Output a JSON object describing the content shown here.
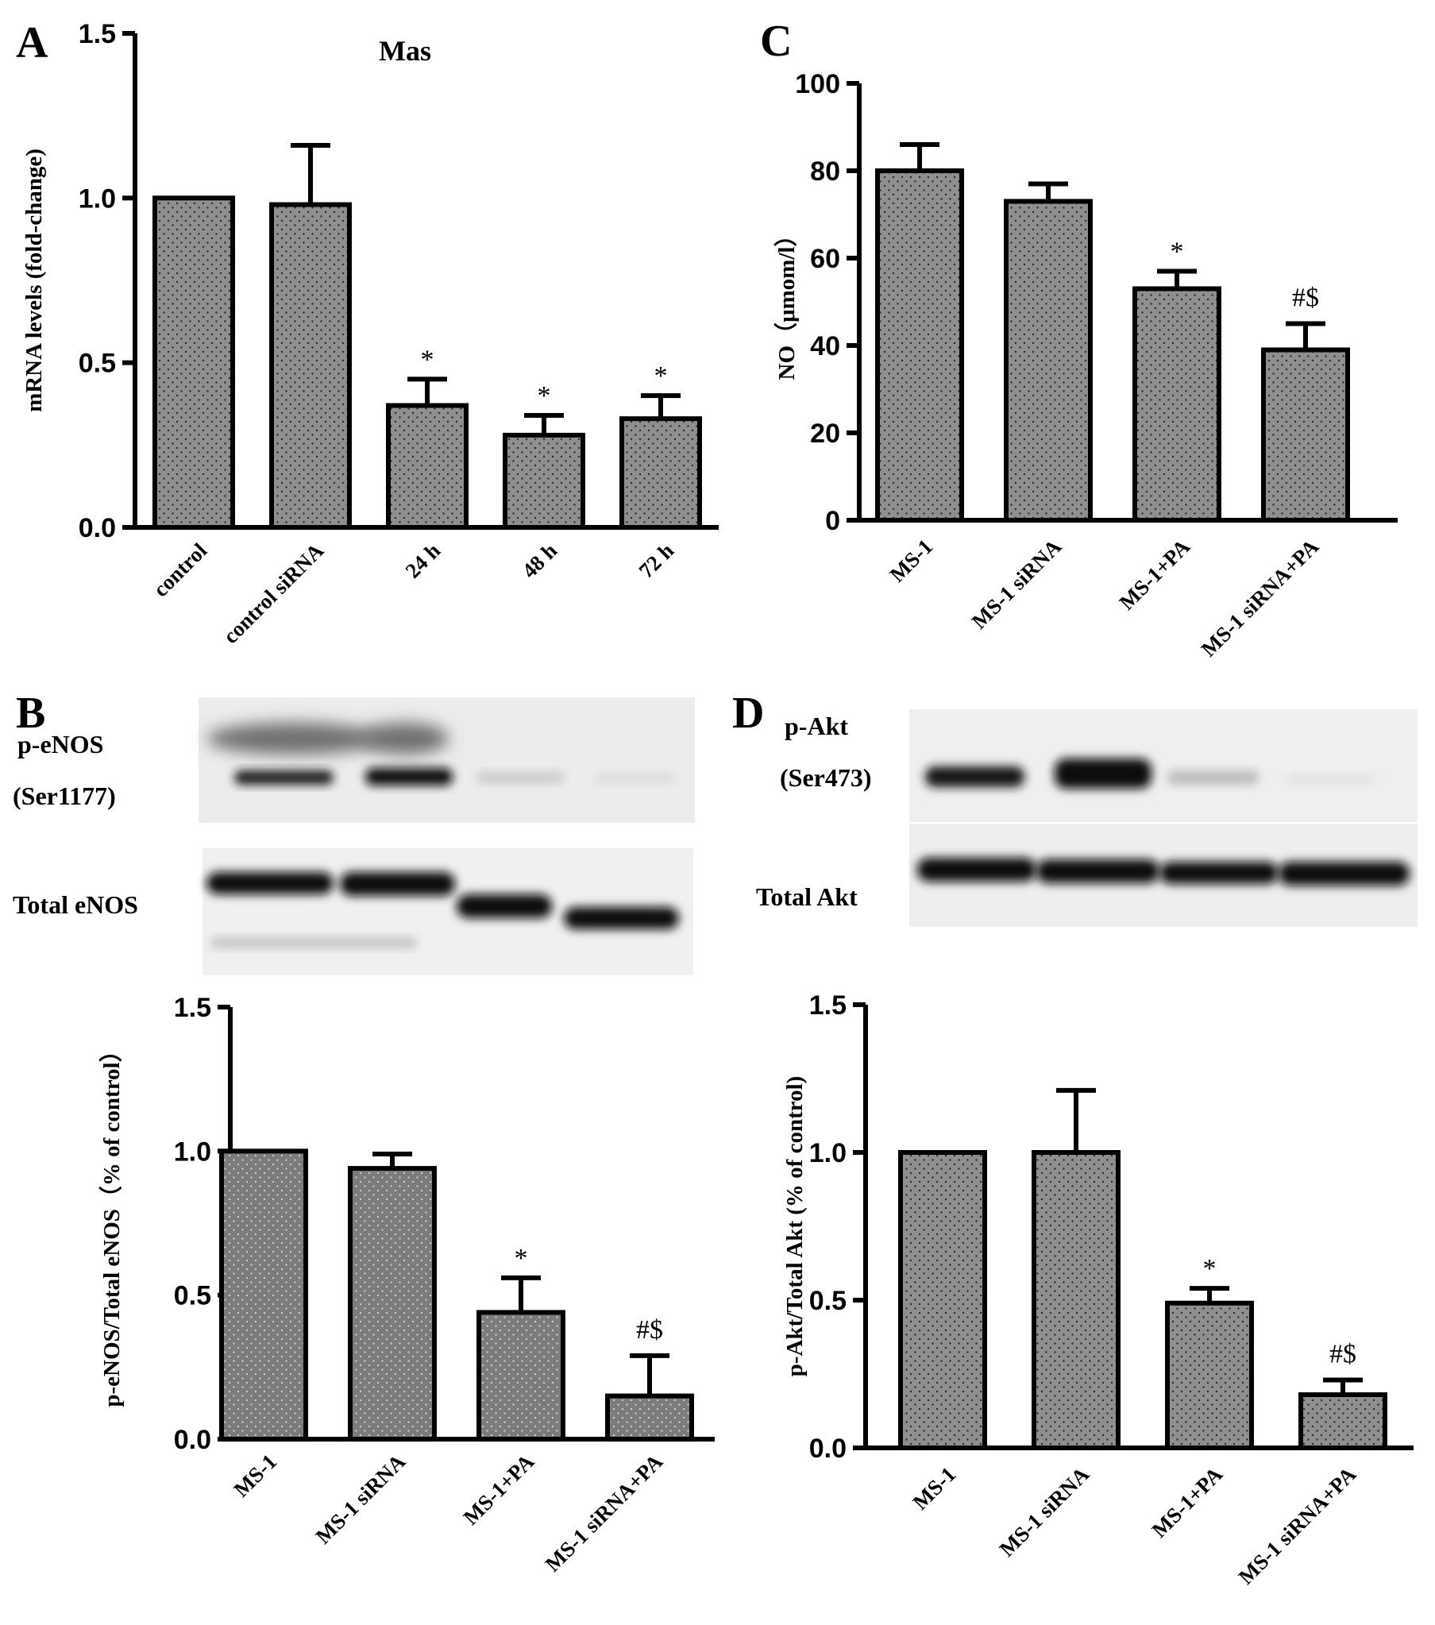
{
  "panel_letters": {
    "a": "A",
    "b": "B",
    "c": "C",
    "d": "D"
  },
  "blots": {
    "b": {
      "label_top_1": "p-eNOS",
      "label_top_2": "(Ser1177)",
      "label_bottom": "Total eNOS"
    },
    "d": {
      "label_top_1": "p-Akt",
      "label_top_2": "(Ser473)",
      "label_bottom": "Total Akt"
    }
  },
  "colors": {
    "bar_fill": "#8f8f8f",
    "dot": "#2a2a2a",
    "axis": "#000000"
  },
  "chart_data": [
    {
      "id": "A",
      "type": "bar",
      "title": "Mas",
      "ylabel": "mRNA levels (fold-change)",
      "categories": [
        "control",
        "control siRNA",
        "24 h",
        "48 h",
        "72 h"
      ],
      "values": [
        1.0,
        0.98,
        0.37,
        0.28,
        0.33
      ],
      "errors": [
        0.0,
        0.18,
        0.08,
        0.06,
        0.07
      ],
      "annotations": [
        "",
        "",
        "*",
        "*",
        "*"
      ],
      "ylim": [
        0,
        1.5
      ],
      "yticks": [
        0.0,
        0.5,
        1.0,
        1.5
      ],
      "ytick_labels": [
        "0.0",
        "0.5",
        "1.0",
        "1.5"
      ]
    },
    {
      "id": "C",
      "type": "bar",
      "title": "",
      "ylabel": "NO（μmom/l）",
      "categories": [
        "MS-1",
        "MS-1 siRNA",
        "MS-1+PA",
        "MS-1 siRNA+PA"
      ],
      "values": [
        80,
        73,
        53,
        39
      ],
      "errors": [
        6,
        4,
        4,
        6
      ],
      "annotations": [
        "",
        "",
        "*",
        "#$"
      ],
      "ylim": [
        0,
        100
      ],
      "yticks": [
        0,
        20,
        40,
        60,
        80,
        100
      ],
      "ytick_labels": [
        "0",
        "20",
        "40",
        "60",
        "80",
        "100"
      ]
    },
    {
      "id": "B",
      "type": "bar",
      "title": "",
      "ylabel": "p-eNOS/Total eNOS（% of control）",
      "categories": [
        "MS-1",
        "MS-1 siRNA",
        "MS-1+PA",
        "MS-1 siRNA+PA"
      ],
      "values": [
        1.0,
        0.94,
        0.44,
        0.15
      ],
      "errors": [
        0.0,
        0.05,
        0.12,
        0.14
      ],
      "annotations": [
        "",
        "",
        "*",
        "#$"
      ],
      "ylim": [
        0,
        1.5
      ],
      "yticks": [
        0.0,
        0.5,
        1.0,
        1.5
      ],
      "ytick_labels": [
        "0.0",
        "0.5",
        "1.0",
        "1.5"
      ]
    },
    {
      "id": "D",
      "type": "bar",
      "title": "",
      "ylabel": "p-Akt/Total Akt  (% of control)",
      "categories": [
        "MS-1",
        "MS-1 siRNA",
        "MS-1+PA",
        "MS-1 siRNA+PA"
      ],
      "values": [
        1.0,
        1.0,
        0.49,
        0.18
      ],
      "errors": [
        0.0,
        0.21,
        0.05,
        0.05
      ],
      "annotations": [
        "",
        "",
        "*",
        "#$"
      ],
      "ylim": [
        0,
        1.5
      ],
      "yticks": [
        0.0,
        0.5,
        1.0,
        1.5
      ],
      "ytick_labels": [
        "0.0",
        "0.5",
        "1.0",
        "1.5"
      ]
    }
  ]
}
